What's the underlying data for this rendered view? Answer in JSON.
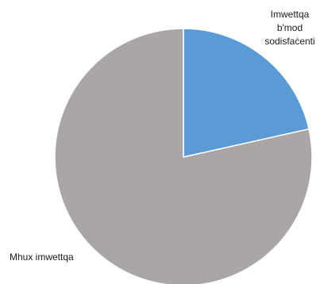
{
  "chart_data": {
    "type": "pie",
    "title": "",
    "categories": [
      "Imwettqa b'mod sodisfaċenti",
      "Mhux imwettqa"
    ],
    "values": [
      21.5,
      78.5
    ],
    "unit": "%",
    "colors": [
      "#5b9bd5",
      "#aaa6a6"
    ],
    "edge_color": "#ffffff",
    "start_angle_deg": 90,
    "direction": "clockwise",
    "legend": "none",
    "slice_labels": [
      {
        "lines": [
          "Imwettqa",
          "b'mod",
          "sodisfaċenti"
        ]
      },
      {
        "lines": [
          "Mhux imwettqa"
        ]
      }
    ]
  }
}
